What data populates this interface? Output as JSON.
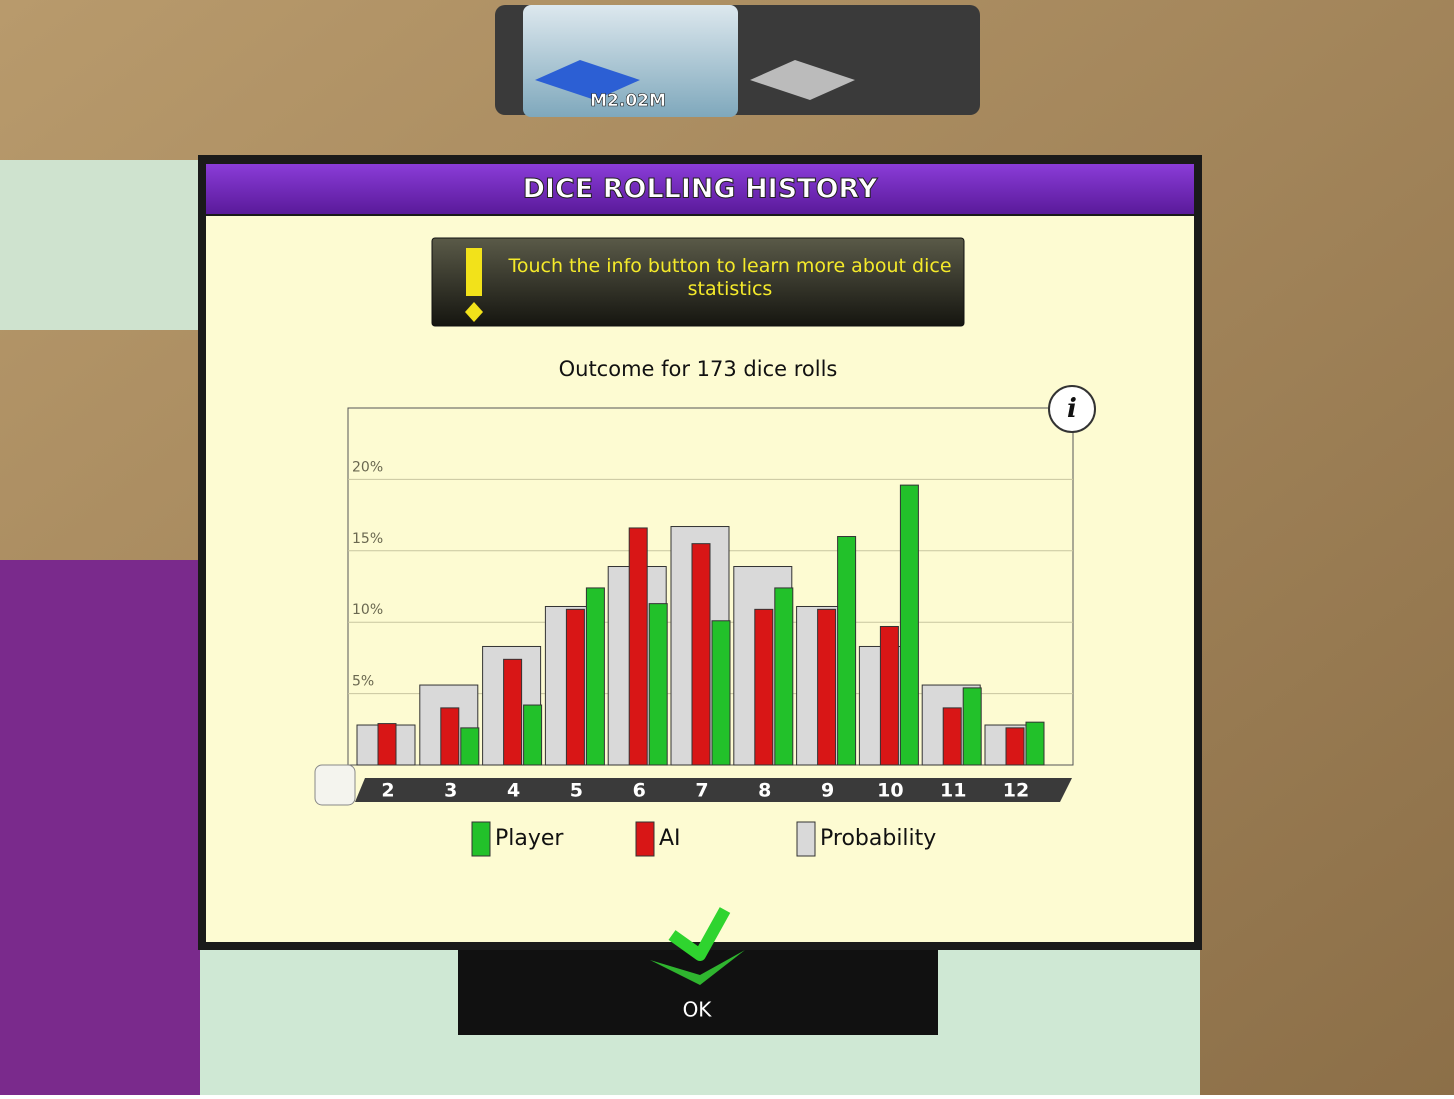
{
  "money": "M2.02M",
  "dialog": {
    "title": "DICE ROLLING HISTORY",
    "hint": "Touch the info button to learn more about dice statistics",
    "ok": "OK"
  },
  "chart_data": {
    "type": "bar",
    "title": "Outcome for 173 dice rolls",
    "categories": [
      "2",
      "3",
      "4",
      "5",
      "6",
      "7",
      "8",
      "9",
      "10",
      "11",
      "12"
    ],
    "series": [
      {
        "name": "Player",
        "color": "#22c12a",
        "values": [
          0,
          2.6,
          4.2,
          12.4,
          11.3,
          10.1,
          12.4,
          16.0,
          19.6,
          5.4,
          3.0
        ]
      },
      {
        "name": "AI",
        "color": "#d81616",
        "values": [
          2.9,
          4.0,
          7.4,
          10.9,
          16.6,
          15.5,
          10.9,
          10.9,
          9.7,
          4.0,
          2.6
        ]
      },
      {
        "name": "Probability",
        "color": "#d9d9d9",
        "values": [
          2.8,
          5.6,
          8.3,
          11.1,
          13.9,
          16.7,
          13.9,
          11.1,
          8.3,
          5.6,
          2.8
        ]
      }
    ],
    "ylim": [
      0,
      25
    ],
    "yticks": [
      {
        "value": 5,
        "label": "5%"
      },
      {
        "value": 10,
        "label": "10%"
      },
      {
        "value": 15,
        "label": "15%"
      },
      {
        "value": 20,
        "label": "20%"
      }
    ],
    "grid": true
  }
}
